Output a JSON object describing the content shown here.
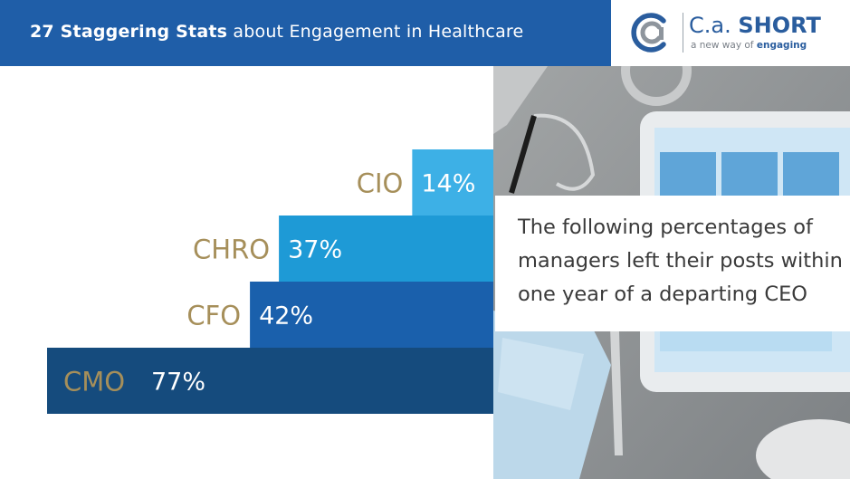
{
  "header": {
    "title_bold": "27 Staggering Stats",
    "title_rest": "about Engagement in Healthcare"
  },
  "logo": {
    "name_light": "C.a.",
    "name_bold": "SHORT",
    "tagline_light": "a new way of",
    "tagline_bold": "engaging"
  },
  "callout": {
    "text": "The following percentages of managers left their posts within one year of a departing CEO"
  },
  "colors": {
    "header": "#1f5ea8",
    "label_gold": "#a68f5a",
    "bars": [
      "#3db0e6",
      "#1e9ad6",
      "#1a60ac",
      "#154b7d"
    ]
  },
  "chart_data": {
    "type": "bar",
    "orientation": "horizontal",
    "categories": [
      "CIO",
      "CHRO",
      "CFO",
      "CMO"
    ],
    "values": [
      14,
      37,
      42,
      77
    ],
    "value_labels": [
      "14%",
      "37%",
      "42%",
      "77%"
    ],
    "unit": "%",
    "title": "",
    "xlabel": "",
    "ylabel": "",
    "grid": false,
    "legend": "none"
  }
}
